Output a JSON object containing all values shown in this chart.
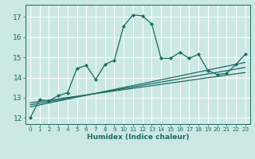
{
  "xlabel": "Humidex (Indice chaleur)",
  "bg_color": "#cce8e4",
  "grid_color": "#ffffff",
  "line_color": "#1a6b62",
  "xlim": [
    -0.5,
    23.5
  ],
  "ylim": [
    11.7,
    17.6
  ],
  "yticks": [
    12,
    13,
    14,
    15,
    16,
    17
  ],
  "xticks": [
    0,
    1,
    2,
    3,
    4,
    5,
    6,
    7,
    8,
    9,
    10,
    11,
    12,
    13,
    14,
    15,
    16,
    17,
    18,
    19,
    20,
    21,
    22,
    23
  ],
  "main_line_x": [
    0,
    1,
    2,
    3,
    4,
    5,
    6,
    7,
    8,
    9,
    10,
    11,
    12,
    13,
    14,
    15,
    16,
    17,
    18,
    19,
    20,
    21,
    22,
    23
  ],
  "main_line_y": [
    12.0,
    12.9,
    12.85,
    13.1,
    13.25,
    14.45,
    14.6,
    13.9,
    14.65,
    14.85,
    16.55,
    17.1,
    17.05,
    16.65,
    14.95,
    14.95,
    15.25,
    14.95,
    15.15,
    14.35,
    14.15,
    14.2,
    14.65,
    15.15
  ],
  "line1_x": [
    0,
    23
  ],
  "line1_y": [
    12.55,
    14.75
  ],
  "line2_x": [
    0,
    23
  ],
  "line2_y": [
    12.65,
    14.5
  ],
  "line3_x": [
    0,
    23
  ],
  "line3_y": [
    12.75,
    14.25
  ]
}
